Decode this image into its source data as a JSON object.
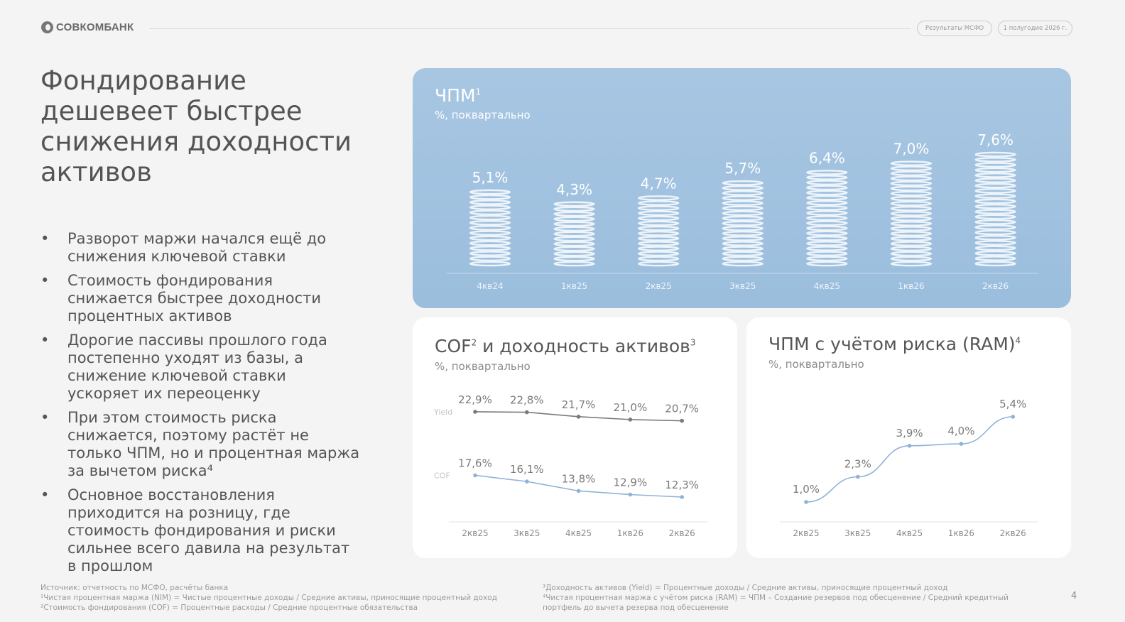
{
  "header": {
    "logo_text": "СОВКОМБАНК",
    "pill_report": "Результаты МСФО",
    "pill_period": "1 полугодие 2026 г."
  },
  "headline": "Фондирование дешевеет быстрее снижения доходности активов",
  "bullets": [
    "Разворот маржи начался ещё до снижения ключевой ставки",
    "Стоимость фондирования снижается быстрее доходности процентных активов",
    "Дорогие пассивы прошлого года постепенно уходят из базы, а снижение ключевой ставки ускоряет их переоценку",
    "При этом стоимость риска снижается, поэтому растёт не только ЧПМ, но и процентная маржа за вычетом риска⁴",
    "Основное восстановления приходится на розницу, где стоимость фондирования и риски сильнее всего давила на результат в прошлом"
  ],
  "colors": {
    "nim_panel": "#a2c3e0",
    "yield_line": "#7a7a7a",
    "cof_line": "#8fb3d8",
    "ram_line": "#8fb3d8"
  },
  "chart_data": [
    {
      "id": "nim",
      "type": "bar",
      "title": "ЧПМ",
      "title_sup": "1",
      "subtitle": "%, поквартально",
      "categories": [
        "4кв24",
        "1кв25",
        "2кв25",
        "3кв25",
        "4кв25",
        "1кв26",
        "2кв26"
      ],
      "values": [
        5.1,
        4.3,
        4.7,
        5.7,
        6.4,
        7.0,
        7.6
      ],
      "labels": [
        "5,1%",
        "4,3%",
        "4,7%",
        "5,7%",
        "6,4%",
        "7,0%",
        "7,6%"
      ]
    },
    {
      "id": "cof",
      "type": "line",
      "title": "COF",
      "title_sup1": "2",
      "title_mid": " и доходность активов",
      "title_sup2": "3",
      "subtitle": "%, поквартально",
      "categories": [
        "2кв25",
        "3кв25",
        "4кв25",
        "1кв26",
        "2кв26"
      ],
      "series": [
        {
          "name": "Yield",
          "values": [
            22.9,
            22.8,
            21.7,
            21.0,
            20.7
          ],
          "labels": [
            "22,9%",
            "22,8%",
            "21,7%",
            "21,0%",
            "20,7%"
          ]
        },
        {
          "name": "COF",
          "values": [
            17.6,
            16.1,
            13.8,
            12.9,
            12.3
          ],
          "labels": [
            "17,6%",
            "16,1%",
            "13,8%",
            "12,9%",
            "12,3%"
          ]
        }
      ]
    },
    {
      "id": "ram",
      "type": "line",
      "title": "ЧПМ с учётом риска (RAM)",
      "title_sup": "4",
      "subtitle": "%, поквартально",
      "categories": [
        "2кв25",
        "3кв25",
        "4кв25",
        "1кв26",
        "2кв26"
      ],
      "series": [
        {
          "values": [
            1.0,
            2.3,
            3.9,
            4.0,
            5.4
          ],
          "labels": [
            "1,0%",
            "2,3%",
            "3,9%",
            "4,0%",
            "5,4%"
          ]
        }
      ]
    }
  ],
  "footnotes_left": [
    "Источник: отчетность по МСФО, расчёты банка",
    "¹Чистая процентная маржа (NIM) = Чистые процентные доходы / Средние активы, приносящие процентный доход",
    "²Стоимость фондирования (COF) = Процентные расходы / Средние процентные обязательства"
  ],
  "footnotes_right": [
    "³Доходность активов (Yield) = Процентные доходы / Средние активы, приносящие процентный доход",
    "⁴Чистая процентная маржа с учётом риска (RAM) = ЧПМ – Создание резервов под обесценение / Средний кредитный",
    "портфель до вычета резерва под обесценение"
  ],
  "page_number": "4"
}
